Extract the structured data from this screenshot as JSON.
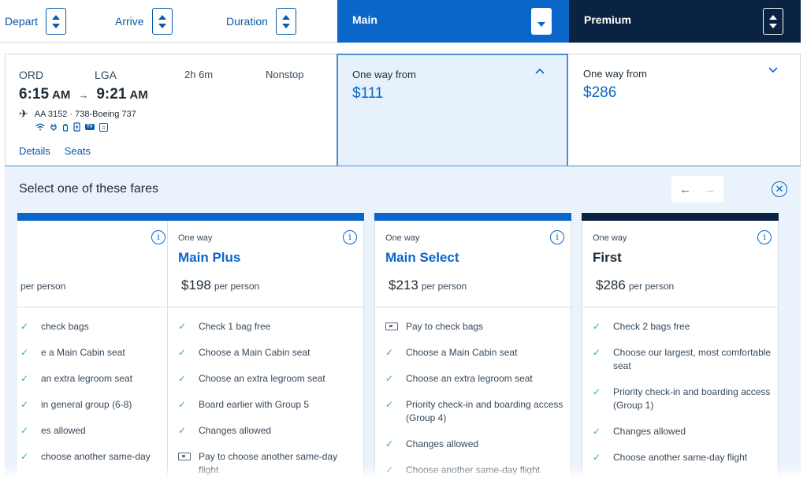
{
  "sort": {
    "depart": "Depart",
    "arrive": "Arrive",
    "duration": "Duration"
  },
  "cabins": {
    "main": "Main",
    "premium": "Premium"
  },
  "flight": {
    "origin": "ORD",
    "destination": "LGA",
    "depart_time": "6:15",
    "depart_ampm": "AM",
    "arrive_time": "9:21",
    "arrive_ampm": "AM",
    "duration": "2h 6m",
    "stops": "Nonstop",
    "aircraft": "AA 3152 · 738-Boeing 737",
    "links": {
      "details": "Details",
      "seats": "Seats"
    },
    "amenity_tv": "TV",
    "amenity_music": "♫"
  },
  "fares": {
    "main": {
      "from": "One way from",
      "price": "$111"
    },
    "premium": {
      "from": "One way from",
      "price": "$286"
    }
  },
  "panel": {
    "title": "Select one of these fares"
  },
  "cards": [
    {
      "partial": true,
      "ow": "",
      "name": "",
      "price": "",
      "per": "per person",
      "features": [
        {
          "icon": "check",
          "text": "check bags"
        },
        {
          "icon": "check",
          "text": "e a Main Cabin seat"
        },
        {
          "icon": "check",
          "text": "an extra legroom seat"
        },
        {
          "icon": "check",
          "text": "in general group (6-8)"
        },
        {
          "icon": "check",
          "text": "es allowed"
        },
        {
          "icon": "check",
          "text": "choose another same-day"
        }
      ]
    },
    {
      "ow": "One way",
      "name": "Main Plus",
      "price": "$198",
      "per": "per person",
      "features": [
        {
          "icon": "check",
          "text": "Check 1 bag free"
        },
        {
          "icon": "check",
          "text": "Choose a Main Cabin seat"
        },
        {
          "icon": "check",
          "text": "Choose an extra legroom seat"
        },
        {
          "icon": "check",
          "text": "Board earlier with Group 5"
        },
        {
          "icon": "check",
          "text": "Changes allowed"
        },
        {
          "icon": "pay",
          "text": "Pay to choose another same-day flight"
        }
      ]
    },
    {
      "ow": "One way",
      "name": "Main Select",
      "price": "$213",
      "per": "per person",
      "features": [
        {
          "icon": "pay",
          "text": "Pay to check bags"
        },
        {
          "icon": "check",
          "text": "Choose a Main Cabin seat"
        },
        {
          "icon": "check",
          "text": "Choose an extra legroom seat"
        },
        {
          "icon": "check",
          "text": "Priority check-in and boarding access (Group 4)"
        },
        {
          "icon": "check",
          "text": "Changes allowed"
        },
        {
          "icon": "check",
          "text": "Choose another same-day flight"
        }
      ]
    },
    {
      "ow": "One way",
      "name": "First",
      "price": "$286",
      "per": "per person",
      "features": [
        {
          "icon": "check",
          "text": "Check 2 bags free"
        },
        {
          "icon": "check",
          "text": "Choose our largest, most comfortable seat"
        },
        {
          "icon": "check",
          "text": "Priority check-in and boarding access (Group 1)"
        },
        {
          "icon": "check",
          "text": "Changes allowed"
        },
        {
          "icon": "check",
          "text": "Choose another same-day flight"
        }
      ]
    }
  ],
  "colors": {
    "accent": "#0a66c8",
    "premium": "#0b2342",
    "check": "#3db46d",
    "panel_bg": "#eaf3fc"
  }
}
